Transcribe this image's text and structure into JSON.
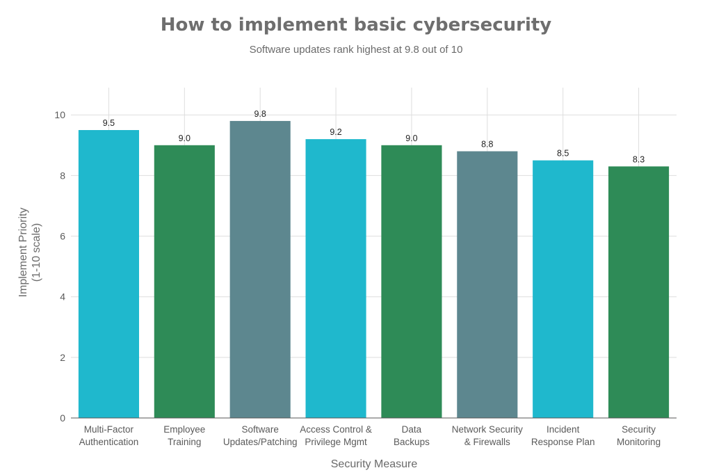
{
  "chart_data": {
    "type": "bar",
    "title": "How to implement basic cybersecurity",
    "subtitle": "Software updates rank highest at 9.8 out of 10",
    "xlabel": "Security Measure",
    "ylabel": [
      "Implement Priority",
      "(1-10 scale)"
    ],
    "ylim": [
      0,
      10.9
    ],
    "yticks": [
      0,
      2,
      4,
      6,
      8,
      10
    ],
    "grid": true,
    "categories": [
      [
        "Multi-Factor",
        "Authentication"
      ],
      [
        "Employee",
        "Training"
      ],
      [
        "Software",
        "Updates/Patching"
      ],
      [
        "Access Control &",
        "Privilege Mgmt"
      ],
      [
        "Data",
        "Backups"
      ],
      [
        "Network Security",
        "& Firewalls"
      ],
      [
        "Incident",
        "Response Plan"
      ],
      [
        "Security",
        "Monitoring"
      ]
    ],
    "values": [
      9.5,
      9.0,
      9.8,
      9.2,
      9.0,
      8.8,
      8.5,
      8.3
    ],
    "value_labels": [
      "9.5",
      "9.0",
      "9.8",
      "9.2",
      "9.0",
      "8.8",
      "8.5",
      "8.3"
    ],
    "colors": [
      "#1fb8cd",
      "#2e8b57",
      "#5d878f",
      "#1fb8cd",
      "#2e8b57",
      "#5d878f",
      "#1fb8cd",
      "#2e8b57"
    ]
  }
}
